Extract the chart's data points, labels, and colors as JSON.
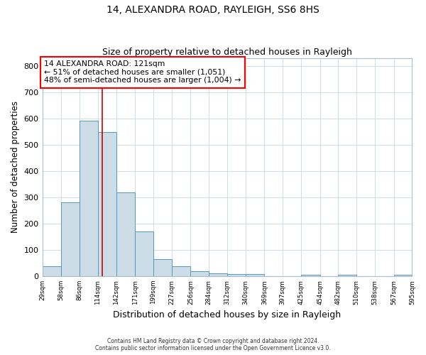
{
  "title1": "14, ALEXANDRA ROAD, RAYLEIGH, SS6 8HS",
  "title2": "Size of property relative to detached houses in Rayleigh",
  "xlabel": "Distribution of detached houses by size in Rayleigh",
  "ylabel": "Number of detached properties",
  "bar_edges": [
    29,
    58,
    86,
    114,
    142,
    171,
    199,
    227,
    256,
    284,
    312,
    340,
    369,
    397,
    425,
    454,
    482,
    510,
    538,
    567,
    595
  ],
  "bar_heights": [
    38,
    280,
    592,
    550,
    320,
    170,
    65,
    38,
    20,
    10,
    7,
    8,
    0,
    0,
    5,
    0,
    5,
    0,
    0,
    5
  ],
  "property_line_x": 121,
  "bar_facecolor": "#ccdde8",
  "bar_edgecolor": "#5599bb",
  "grid_color": "#d0dde8",
  "bg_color": "#ffffff",
  "vline_color": "#cc0000",
  "box_text_line1": "14 ALEXANDRA ROAD: 121sqm",
  "box_text_line2": "← 51% of detached houses are smaller (1,051)",
  "box_text_line3": "48% of semi-detached houses are larger (1,004) →",
  "ylim": [
    0,
    830
  ],
  "yticks": [
    0,
    100,
    200,
    300,
    400,
    500,
    600,
    700,
    800
  ],
  "tick_labels": [
    "29sqm",
    "58sqm",
    "86sqm",
    "114sqm",
    "142sqm",
    "171sqm",
    "199sqm",
    "227sqm",
    "256sqm",
    "284sqm",
    "312sqm",
    "340sqm",
    "369sqm",
    "397sqm",
    "425sqm",
    "454sqm",
    "482sqm",
    "510sqm",
    "538sqm",
    "567sqm",
    "595sqm"
  ],
  "footer1": "Contains HM Land Registry data © Crown copyright and database right 2024.",
  "footer2": "Contains public sector information licensed under the Open Government Licence v3.0."
}
